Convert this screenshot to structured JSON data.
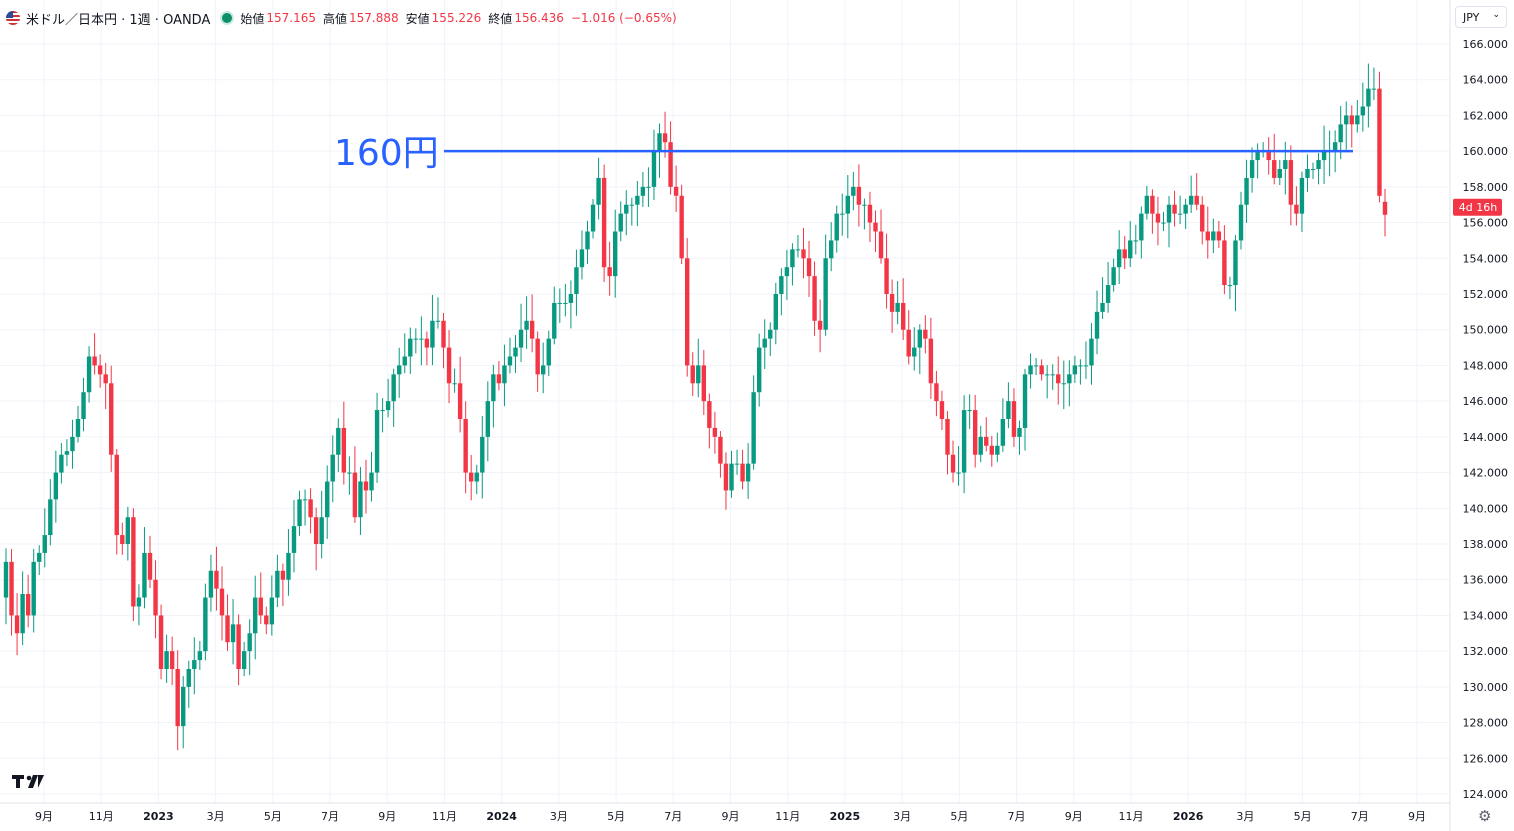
{
  "header": {
    "symbol": "米ドル／日本円 · 1週 · OANDA",
    "open_label": "始値",
    "open_value": "157.165",
    "high_label": "高値",
    "high_value": "157.888",
    "low_label": "安値",
    "low_value": "155.226",
    "close_label": "終値",
    "close_value": "156.436",
    "change": "−1.016 (−0.65%)"
  },
  "currency_selector": {
    "value": "JPY"
  },
  "icons": {
    "settings": "gear-icon",
    "logo": "tradingview-logo-icon",
    "flag": "us-flag-icon",
    "chevron": "chevron-down-icon"
  },
  "colors": {
    "up": "#089981",
    "down": "#f23645",
    "annotation": "#2962ff",
    "text": "#131722",
    "grid": "#f0f3fa"
  },
  "chart_data": {
    "type": "candlestick",
    "ylim": [
      123.5,
      166.5
    ],
    "y_ticks": [
      "124.000",
      "126.000",
      "128.000",
      "130.000",
      "132.000",
      "134.000",
      "136.000",
      "138.000",
      "140.000",
      "142.000",
      "144.000",
      "146.000",
      "148.000",
      "150.000",
      "152.000",
      "154.000",
      "156.000",
      "158.000",
      "160.000",
      "162.000",
      "164.000",
      "166.000"
    ],
    "x_ticks": [
      "9月",
      "11月",
      "2023",
      "3月",
      "5月",
      "7月",
      "9月",
      "11月",
      "2024",
      "3月",
      "5月",
      "7月",
      "9月",
      "11月",
      "2025",
      "3月",
      "5月",
      "7月",
      "9月",
      "11月",
      "2026",
      "3月",
      "5月",
      "7月",
      "9月"
    ],
    "bold_ticks": [
      "2023",
      "2024",
      "2025",
      "2026"
    ],
    "countdown_label": "4d 16h",
    "annotation": {
      "text": "160円",
      "level": 160.0
    },
    "weekly_closes": [
      137.0,
      134.0,
      133.0,
      135.2,
      134.0,
      137.0,
      137.5,
      138.5,
      140.5,
      142.0,
      143.0,
      143.2,
      144.0,
      145.0,
      146.5,
      148.5,
      148.0,
      147.5,
      147.0,
      143.0,
      138.5,
      138.0,
      139.5,
      134.5,
      135.0,
      137.5,
      136.0,
      134.0,
      131.0,
      132.0,
      131.0,
      127.8,
      130.0,
      131.0,
      131.5,
      132.0,
      135.0,
      136.5,
      135.5,
      134.0,
      132.5,
      133.5,
      131.0,
      132.0,
      133.0,
      135.0,
      134.0,
      133.5,
      135.0,
      136.5,
      136.0,
      137.5,
      139.0,
      140.5,
      140.5,
      139.5,
      138.0,
      139.5,
      141.5,
      143.0,
      144.5,
      142.0,
      142.0,
      139.5,
      141.5,
      141.0,
      142.0,
      145.5,
      145.5,
      146.0,
      147.5,
      148.0,
      148.5,
      149.5,
      149.5,
      149.5,
      149.0,
      150.5,
      150.5,
      149.0,
      147.0,
      147.0,
      145.0,
      142.0,
      141.5,
      142.0,
      144.0,
      146.0,
      147.5,
      147.0,
      148.0,
      148.5,
      149.0,
      150.0,
      150.5,
      149.5,
      147.5,
      148.0,
      149.5,
      151.5,
      151.5,
      151.5,
      152.0,
      153.5,
      154.5,
      155.5,
      157.0,
      158.5,
      153.5,
      153.0,
      155.5,
      156.5,
      157.0,
      157.0,
      157.5,
      158.0,
      158.0,
      160.0,
      161.0,
      160.5,
      158.0,
      157.5,
      154.0,
      148.0,
      147.0,
      148.0,
      146.0,
      144.5,
      144.0,
      142.5,
      141.0,
      142.5,
      142.5,
      141.5,
      142.5,
      146.5,
      149.0,
      149.5,
      150.0,
      152.0,
      153.0,
      153.5,
      154.5,
      154.5,
      154.0,
      153.0,
      150.5,
      150.0,
      154.0,
      155.0,
      156.5,
      156.5,
      157.5,
      158.0,
      157.0,
      157.0,
      156.0,
      155.5,
      154.0,
      152.0,
      151.0,
      151.5,
      150.0,
      148.5,
      149.0,
      150.0,
      149.5,
      147.0,
      146.0,
      145.0,
      143.0,
      142.0,
      142.0,
      145.5,
      145.5,
      143.0,
      144.0,
      143.5,
      143.0,
      143.5,
      145.0,
      146.0,
      144.0,
      144.5,
      147.5,
      148.0,
      148.0,
      147.5,
      147.5,
      147.5,
      147.0,
      147.0,
      147.5,
      148.0,
      148.0,
      148.0,
      149.5,
      151.0,
      151.5,
      152.5,
      153.5,
      154.5,
      154.0,
      155.0,
      155.0,
      156.5,
      157.5,
      156.5,
      156.0,
      156.0,
      157.0,
      156.5,
      156.5,
      157.0,
      157.5,
      157.0,
      155.5,
      155.0,
      155.5,
      155.0,
      152.5,
      152.5,
      155.0,
      157.0,
      158.5,
      159.5,
      160.0,
      160.0,
      159.5,
      158.5,
      159.0,
      159.5,
      157.0,
      156.5,
      158.5,
      159.0,
      159.0,
      159.5,
      160.0,
      160.0,
      160.5,
      161.5,
      162.0,
      161.5,
      162.0,
      162.5,
      163.5,
      163.5,
      157.5,
      156.4
    ],
    "weekly_opens_start": 135.0,
    "last_bar": {
      "open": 157.165,
      "high": 157.888,
      "low": 155.226,
      "close": 156.436
    }
  }
}
